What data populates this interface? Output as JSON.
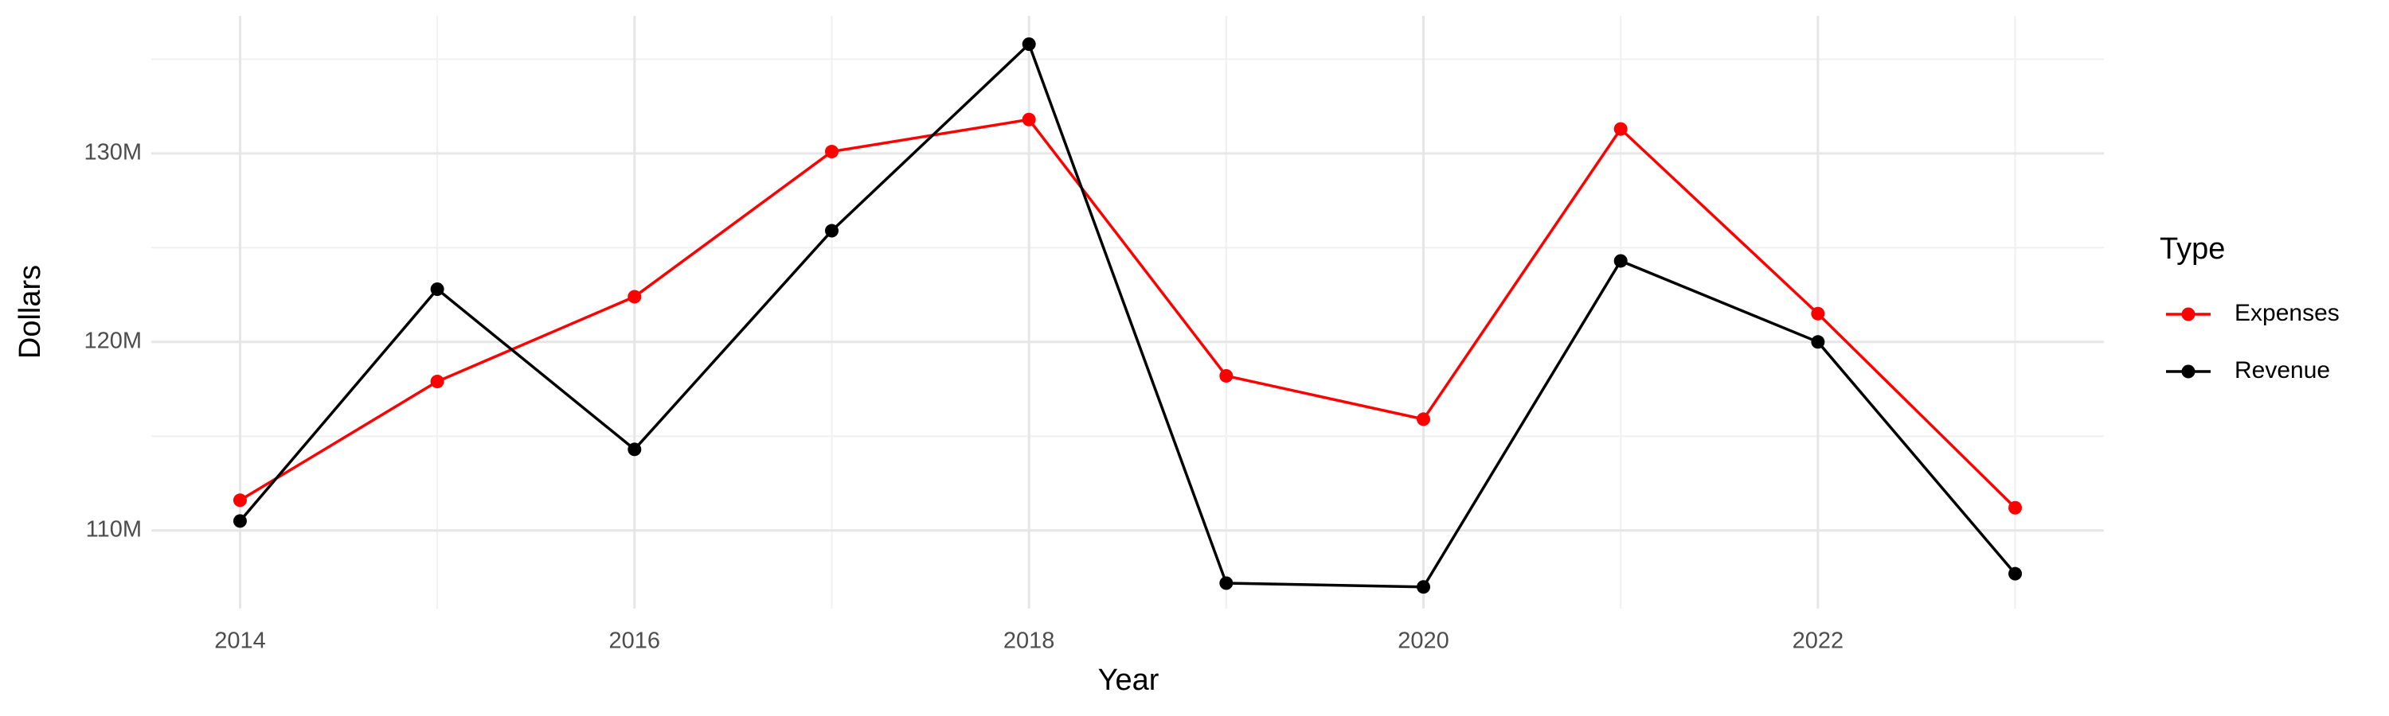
{
  "chart_data": {
    "type": "line",
    "x_label": "Year",
    "y_label": "Dollars",
    "legend_title": "Type",
    "legend_position": "right",
    "x": [
      2014,
      2015,
      2016,
      2017,
      2018,
      2019,
      2020,
      2021,
      2022,
      2023
    ],
    "series": [
      {
        "name": "Expenses",
        "color": "#ff0000",
        "values": [
          111600000,
          117900000,
          122400000,
          130100000,
          131800000,
          118200000,
          115900000,
          131300000,
          121500000,
          111200000
        ]
      },
      {
        "name": "Revenue",
        "color": "#000000",
        "values": [
          110500000,
          122800000,
          114300000,
          125900000,
          135800000,
          107200000,
          107000000,
          124300000,
          120000000,
          107700000
        ]
      }
    ],
    "xlim": [
      2013.55,
      2023.45
    ],
    "xticks": [
      2014,
      2016,
      2018,
      2020,
      2022
    ],
    "x_minor_ticks": [
      2015,
      2017,
      2019,
      2021,
      2023
    ],
    "ylim": [
      105850000,
      137300000
    ],
    "yticks": [
      {
        "value": 110000000,
        "label": "110M"
      },
      {
        "value": 120000000,
        "label": "120M"
      },
      {
        "value": 130000000,
        "label": "130M"
      }
    ],
    "y_minor_ticks": [
      115000000,
      125000000,
      135000000
    ],
    "grid": true
  }
}
